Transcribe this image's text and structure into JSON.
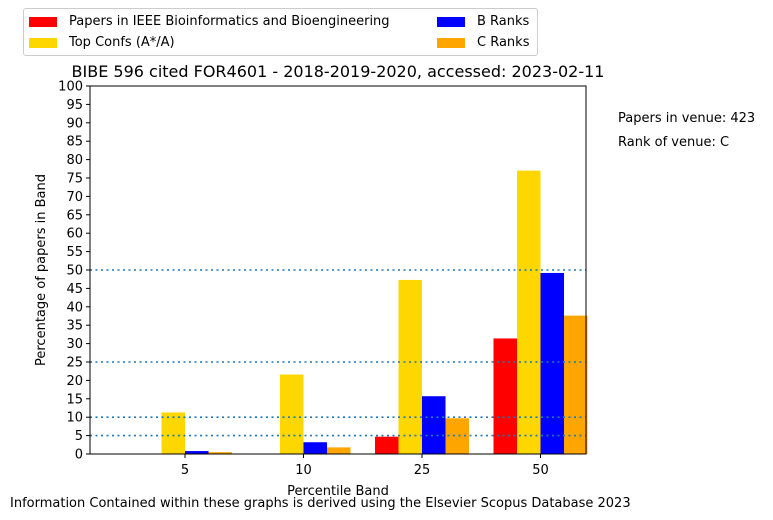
{
  "chart_data": {
    "type": "bar",
    "title": "BIBE 596 cited FOR4601 - 2018-2019-2020, accessed: 2023-02-11",
    "xlabel": "Percentile Band",
    "ylabel": "Percentage of papers in Band",
    "categories": [
      "5",
      "10",
      "25",
      "50"
    ],
    "ylim": [
      0,
      100
    ],
    "yticks": [
      0,
      5,
      10,
      15,
      20,
      25,
      30,
      35,
      40,
      45,
      50,
      55,
      60,
      65,
      70,
      75,
      80,
      85,
      90,
      95,
      100
    ],
    "reference_lines": [
      5,
      10,
      25,
      50
    ],
    "legend_position": "top-left, above plot",
    "series": [
      {
        "name": "Papers in IEEE Bioinformatics and Bioengineering",
        "color": "#ff0000",
        "values": [
          0,
          0,
          4.7,
          31.4
        ]
      },
      {
        "name": "Top Confs (A*/A)",
        "color": "#ffd700",
        "values": [
          11.3,
          21.6,
          47.3,
          77.0
        ]
      },
      {
        "name": "B Ranks",
        "color": "#0000ff",
        "values": [
          0.8,
          3.2,
          15.7,
          49.2
        ]
      },
      {
        "name": "C Ranks",
        "color": "#ffa500",
        "values": [
          0.5,
          1.8,
          9.7,
          37.6
        ]
      }
    ]
  },
  "legend": {
    "items": [
      {
        "label": "Papers in IEEE Bioinformatics and Bioengineering",
        "color": "#ff0000"
      },
      {
        "label": "Top Confs (A*/A)",
        "color": "#ffd700"
      },
      {
        "label": "B Ranks",
        "color": "#0000ff"
      },
      {
        "label": "C Ranks",
        "color": "#ffa500"
      }
    ]
  },
  "side_notes": {
    "papers_in_venue": "Papers in venue: 423",
    "rank_of_venue": "Rank of venue: C"
  },
  "footer": "Information Contained within these graphs is derived using the Elsevier Scopus Database 2023"
}
